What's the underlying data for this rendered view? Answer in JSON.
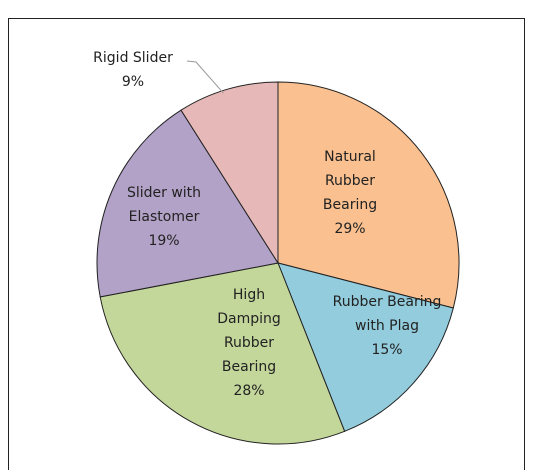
{
  "chart_data": {
    "type": "pie",
    "categories": [
      "Natural Rubber Bearing",
      "Rubber Bearing with Plag",
      "High Damping Rubber Bearing",
      "Slider with Elastomer",
      "Rigid Slider"
    ],
    "values": [
      29,
      15,
      28,
      19,
      9
    ],
    "value_labels": [
      "29%",
      "15%",
      "28%",
      "19%",
      "9%"
    ],
    "colors": [
      "#fac090",
      "#93cddd",
      "#c4d79b",
      "#b3a2c7",
      "#e6b9b8"
    ],
    "start_angle": 0,
    "direction": "clockwise"
  }
}
